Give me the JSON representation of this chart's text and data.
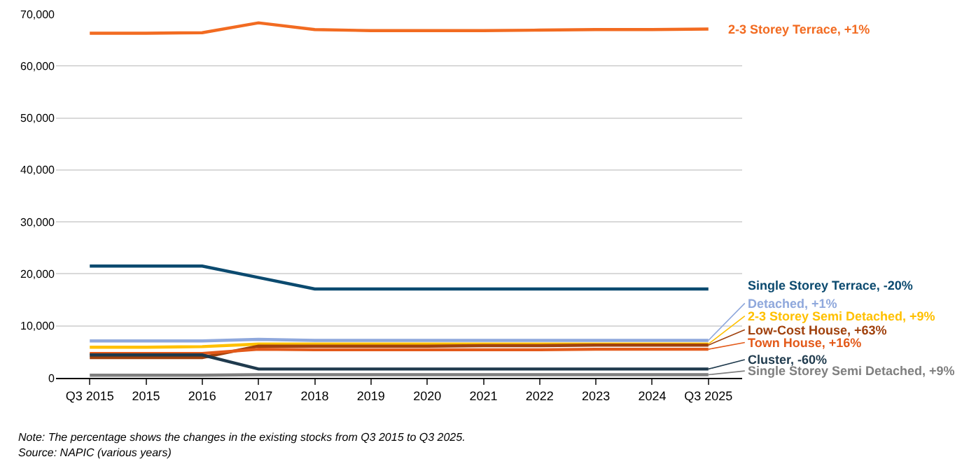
{
  "chart_data": {
    "type": "line",
    "categories": [
      "Q3 2015",
      "2015",
      "2016",
      "2017",
      "2018",
      "2019",
      "2020",
      "2021",
      "2022",
      "2023",
      "2024",
      "Q3 2025"
    ],
    "series": [
      {
        "name": "2-3 Storey Terrace, +1%",
        "color": "#f26b21",
        "values": [
          66300,
          66300,
          66400,
          68300,
          67000,
          66800,
          66800,
          66800,
          66900,
          67000,
          67000,
          67100
        ]
      },
      {
        "name": "Single Storey Terrace, -20%",
        "color": "#0b4a6f",
        "values": [
          21500,
          21500,
          21500,
          19300,
          17100,
          17100,
          17100,
          17100,
          17100,
          17100,
          17100,
          17100
        ]
      },
      {
        "name": "Detached, +1%",
        "color": "#8fa8dc",
        "values": [
          7100,
          7100,
          7100,
          7400,
          7200,
          7200,
          7200,
          7200,
          7200,
          7200,
          7200,
          7200
        ]
      },
      {
        "name": "2-3 Storey Semi Detached, +9%",
        "color": "#ffc000",
        "values": [
          5900,
          5900,
          6000,
          6500,
          6500,
          6500,
          6500,
          6500,
          6500,
          6500,
          6500,
          6500
        ]
      },
      {
        "name": "Low-Cost House, +63%",
        "color": "#a0410d",
        "values": [
          3900,
          3900,
          3900,
          6100,
          6100,
          6100,
          6100,
          6200,
          6200,
          6300,
          6300,
          6300
        ]
      },
      {
        "name": "Town House, +16%",
        "color": "#e35a1a",
        "values": [
          4700,
          4700,
          4700,
          5500,
          5400,
          5400,
          5400,
          5400,
          5400,
          5500,
          5500,
          5500
        ]
      },
      {
        "name": "Cluster, -60%",
        "color": "#1f3a4d",
        "values": [
          4400,
          4400,
          4400,
          1700,
          1700,
          1700,
          1700,
          1700,
          1700,
          1700,
          1700,
          1700
        ]
      },
      {
        "name": "Single Storey Semi Detached, +9%",
        "color": "#7f7f7f",
        "values": [
          500,
          500,
          500,
          600,
          600,
          600,
          600,
          600,
          600,
          600,
          600,
          600
        ]
      }
    ],
    "ylim": [
      0,
      70000
    ],
    "yticks": [
      {
        "value": 0,
        "label": "0"
      },
      {
        "value": 10000,
        "label": "10,000"
      },
      {
        "value": 20000,
        "label": "20,000"
      },
      {
        "value": 30000,
        "label": "30,000"
      },
      {
        "value": 40000,
        "label": "40,000"
      },
      {
        "value": 50000,
        "label": "50,000"
      },
      {
        "value": 60000,
        "label": "60,000"
      },
      {
        "value": 70000,
        "label": "70,000"
      }
    ],
    "grid": "y",
    "legend": "right",
    "marker": "none",
    "line_style": "solid",
    "annotations": [
      "Note: The percentage shows the changes in the existing stocks from Q3 2015 to Q3 2025.",
      "Source: NAPIC (various years)"
    ]
  }
}
